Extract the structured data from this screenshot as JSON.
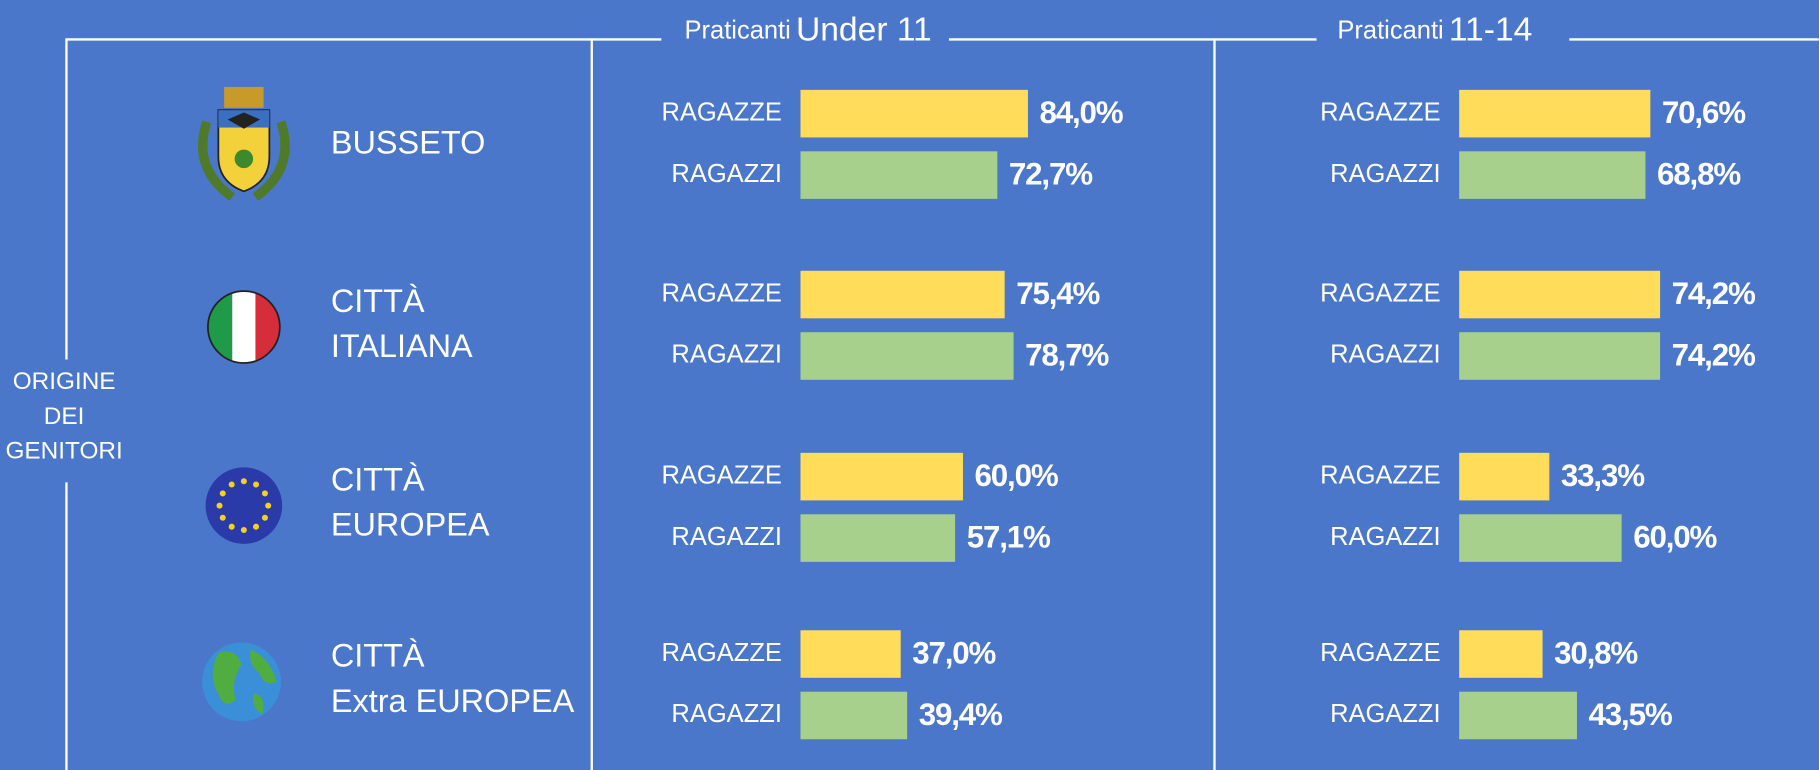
{
  "row_header": [
    "ORIGINE",
    "DEI",
    "GENITORI"
  ],
  "rows": [
    [
      "BUSSETO"
    ],
    [
      "CITTÀ",
      "ITALIANA"
    ],
    [
      "CITTÀ",
      "EUROPEA"
    ],
    [
      "CITTÀ",
      "Extra EUROPEA"
    ]
  ],
  "chart_data": [
    {
      "type": "bar",
      "title_prefix": "Praticanti",
      "title": "Under 11",
      "series": [
        {
          "name": "RAGAZZE",
          "color": "#ffdc5a",
          "values": [
            84.0,
            75.4,
            60.0,
            37.0
          ],
          "value_labels": [
            "84,0%",
            "75,4%",
            "60,0%",
            "37,0%"
          ]
        },
        {
          "name": "RAGAZZI",
          "color": "#a8d08d",
          "values": [
            72.7,
            78.7,
            57.1,
            39.4
          ],
          "value_labels": [
            "72,7%",
            "78,7%",
            "57,1%",
            "39,4%"
          ]
        }
      ]
    },
    {
      "type": "bar",
      "title_prefix": "Praticanti",
      "title": "11-14",
      "series": [
        {
          "name": "RAGAZZE",
          "color": "#ffdc5a",
          "values": [
            70.6,
            74.2,
            33.3,
            30.8
          ],
          "value_labels": [
            "70,6%",
            "74,2%",
            "33,3%",
            "30,8%"
          ]
        },
        {
          "name": "RAGAZZI",
          "color": "#a8d08d",
          "values": [
            68.8,
            74.2,
            60.0,
            43.5
          ],
          "value_labels": [
            "68,8%",
            "74,2%",
            "60,0%",
            "43,5%"
          ]
        }
      ]
    }
  ]
}
